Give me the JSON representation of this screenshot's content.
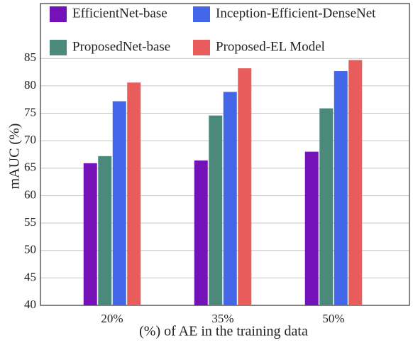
{
  "chart_data": {
    "type": "bar",
    "categories": [
      "20%",
      "35%",
      "50%"
    ],
    "series": [
      {
        "name": "EfficientNet-base",
        "color": "#7412b8",
        "values": [
          65.9,
          66.4,
          68.0
        ]
      },
      {
        "name": "ProposedNet-base",
        "color": "#4b8a7a",
        "values": [
          67.2,
          74.6,
          75.9
        ]
      },
      {
        "name": "Inception-Efficient-DenseNet",
        "color": "#4466e8",
        "values": [
          77.2,
          78.9,
          82.7
        ]
      },
      {
        "name": "Proposed-EL Model",
        "color": "#e85c5c",
        "values": [
          80.6,
          83.2,
          84.7
        ]
      }
    ],
    "x_label": "(%) of AE in the training data",
    "y_label": "mAUC (%)",
    "ylim": [
      40,
      95
    ],
    "yticks": [
      40,
      45,
      50,
      55,
      60,
      65,
      70,
      75,
      80,
      85
    ],
    "grid": true
  }
}
